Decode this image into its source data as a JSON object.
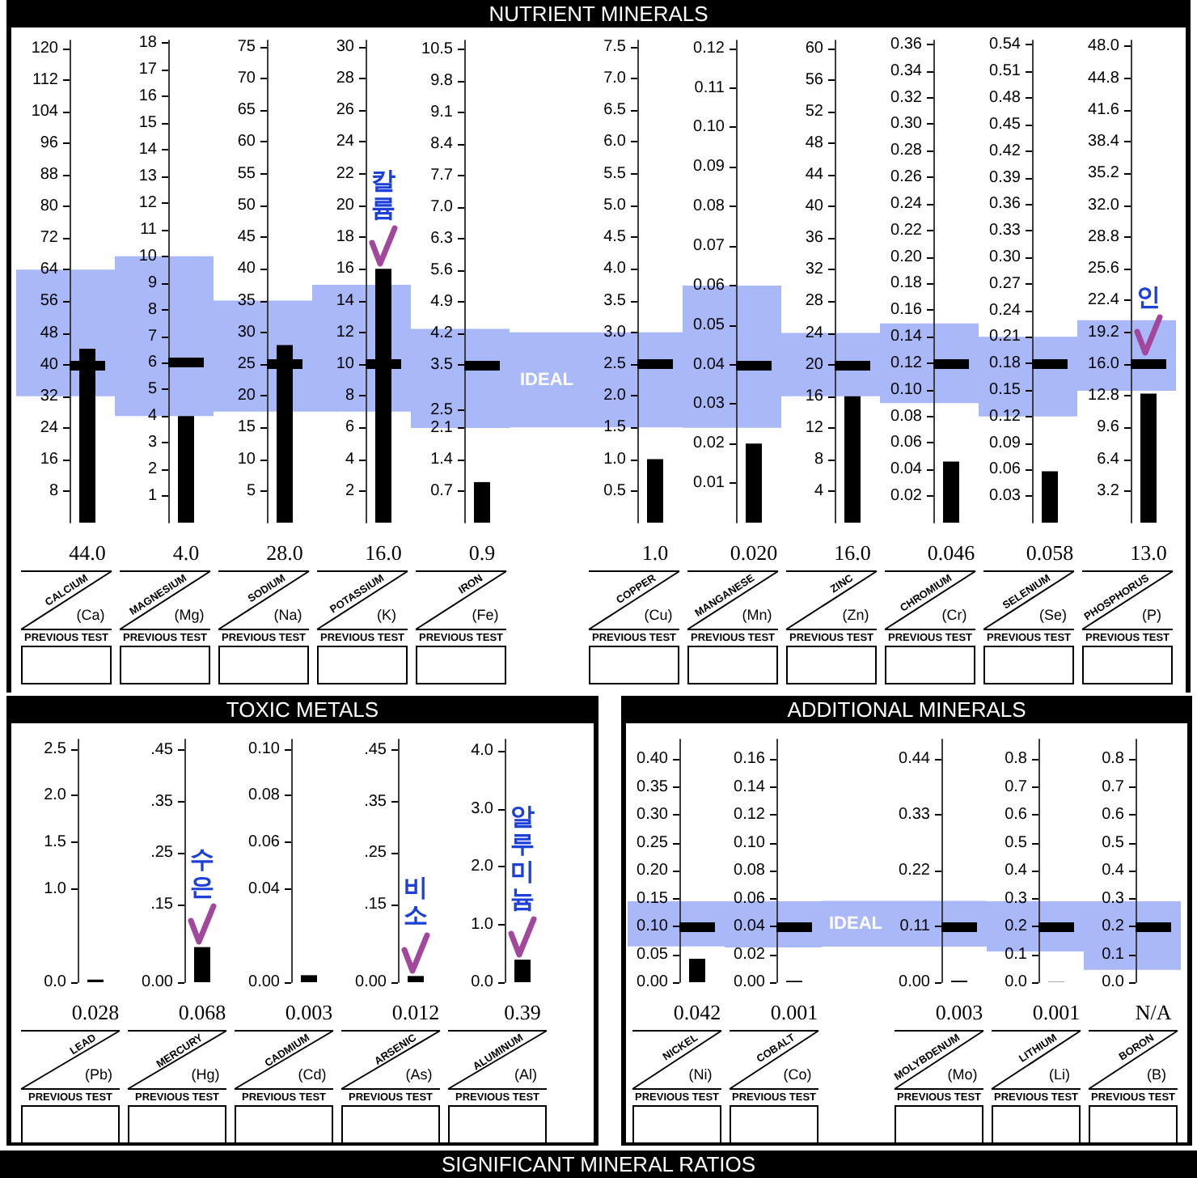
{
  "chart_data": [
    {
      "type": "other",
      "title": "NUTRIENT MINERALS"
    },
    {
      "type": "bar",
      "categories": [
        "CALCIUM"
      ],
      "values": [
        44.0
      ],
      "value_labels": [
        "44.0"
      ],
      "color": "#000000",
      "ylim": [
        0,
        122
      ],
      "yticks": [
        8,
        16,
        24,
        32,
        40,
        48,
        56,
        64,
        72,
        80,
        88,
        96,
        104,
        112,
        120
      ],
      "ref_lines": [
        {
          "axis": "y",
          "value": 40,
          "color": "#000000"
        }
      ],
      "bands": [
        {
          "axis": "y",
          "from": 32,
          "to": 64,
          "color": "#a8b8f8"
        }
      ],
      "annotations": [
        "(Ca)",
        "PREVIOUS TEST"
      ]
    },
    {
      "type": "bar",
      "categories": [
        "MAGNESIUM"
      ],
      "values": [
        4.0
      ],
      "value_labels": [
        "4.0"
      ],
      "color": "#000000",
      "ylim": [
        0,
        18.1
      ],
      "yticks": [
        1,
        2,
        3,
        4,
        5,
        6,
        7,
        8,
        9,
        10,
        11,
        12,
        13,
        14,
        15,
        16,
        17,
        18
      ],
      "ref_lines": [
        {
          "axis": "y",
          "value": 6,
          "color": "#000000"
        }
      ],
      "bands": [
        {
          "axis": "y",
          "from": 4,
          "to": 10,
          "color": "#a8b8f8"
        }
      ],
      "annotations": [
        "(Mg)",
        "PREVIOUS TEST"
      ]
    },
    {
      "type": "bar",
      "categories": [
        "SODIUM"
      ],
      "values": [
        28.0
      ],
      "value_labels": [
        "28.0"
      ],
      "color": "#000000",
      "ylim": [
        0,
        76
      ],
      "yticks": [
        5,
        10,
        15,
        20,
        25,
        30,
        35,
        40,
        45,
        50,
        55,
        60,
        65,
        70,
        75
      ],
      "ref_lines": [
        {
          "axis": "y",
          "value": 25,
          "color": "#000000"
        }
      ],
      "bands": [
        {
          "axis": "y",
          "from": 17.5,
          "to": 35,
          "color": "#a8b8f8"
        }
      ],
      "annotations": [
        "(Na)",
        "PREVIOUS TEST"
      ]
    },
    {
      "type": "bar",
      "categories": [
        "POTASSIUM"
      ],
      "values": [
        16.0
      ],
      "value_labels": [
        "16.0"
      ],
      "color": "#000000",
      "ylim": [
        0,
        30.4
      ],
      "yticks": [
        2,
        4,
        6,
        8,
        10,
        12,
        14,
        16,
        18,
        20,
        22,
        24,
        26,
        28,
        30
      ],
      "ref_lines": [
        {
          "axis": "y",
          "value": 10,
          "color": "#000000"
        }
      ],
      "bands": [
        {
          "axis": "y",
          "from": 7,
          "to": 15,
          "color": "#a8b8f8"
        }
      ],
      "annotations": [
        "(K)",
        "PREVIOUS TEST",
        {
          "text": "칼륨",
          "x": "POTASSIUM",
          "y": 16.0
        }
      ]
    },
    {
      "type": "bar",
      "categories": [
        "IRON"
      ],
      "values": [
        0.9
      ],
      "value_labels": [
        "0.9"
      ],
      "color": "#000000",
      "ylim": [
        0,
        10.7
      ],
      "yticks": [
        0.7,
        1.4,
        2.1,
        2.5,
        3.5,
        4.2,
        4.9,
        5.6,
        6.3,
        {
          "value": 7,
          "label": "7.0"
        },
        7.7,
        8.4,
        9.1,
        9.8,
        10.5
      ],
      "ref_lines": [
        {
          "axis": "y",
          "value": 3.5,
          "color": "#000000"
        }
      ],
      "bands": [
        {
          "axis": "y",
          "from": 2.1,
          "to": 4.3,
          "color": "#a8b8f8"
        }
      ],
      "annotations": [
        "(Fe)",
        "PREVIOUS TEST"
      ]
    },
    {
      "type": "bar",
      "categories": [
        "COPPER"
      ],
      "values": [
        1.0
      ],
      "value_labels": [
        "1.0"
      ],
      "color": "#000000",
      "ylim": [
        0,
        7.6
      ],
      "yticks": [
        0.5,
        {
          "value": 1,
          "label": "1.0"
        },
        1.5,
        {
          "value": 2,
          "label": "2.0"
        },
        2.5,
        {
          "value": 3,
          "label": "3.0"
        },
        3.5,
        {
          "value": 4,
          "label": "4.0"
        },
        4.5,
        {
          "value": 5,
          "label": "5.0"
        },
        5.5,
        {
          "value": 6,
          "label": "6.0"
        },
        6.5,
        {
          "value": 7,
          "label": "7.0"
        },
        7.5
      ],
      "ref_lines": [
        {
          "axis": "y",
          "value": 2.5,
          "color": "#000000"
        }
      ],
      "bands": [
        {
          "axis": "y",
          "from": 1.5,
          "to": 3.0,
          "color": "#a8b8f8",
          "label": "IDEAL"
        }
      ],
      "annotations": [
        "(Cu)",
        "PREVIOUS TEST"
      ]
    },
    {
      "type": "bar",
      "categories": [
        "MANGANESE"
      ],
      "values": [
        0.02
      ],
      "value_labels": [
        "0.020"
      ],
      "color": "#000000",
      "ylim": [
        0,
        0.122
      ],
      "yticks": [
        0.01,
        0.02,
        0.03,
        0.04,
        0.05,
        0.06,
        0.07,
        0.08,
        0.09,
        {
          "value": 0.1,
          "label": "0.10"
        },
        0.11,
        0.12
      ],
      "ref_lines": [
        {
          "axis": "y",
          "value": 0.04,
          "color": "#000000"
        }
      ],
      "bands": [
        {
          "axis": "y",
          "from": 0.024,
          "to": 0.06,
          "color": "#a8b8f8"
        }
      ],
      "annotations": [
        "(Mn)",
        "PREVIOUS TEST"
      ]
    },
    {
      "type": "bar",
      "categories": [
        "ZINC"
      ],
      "values": [
        16.0
      ],
      "value_labels": [
        "16.0"
      ],
      "color": "#000000",
      "ylim": [
        0,
        61
      ],
      "yticks": [
        4,
        8,
        12,
        16,
        20,
        24,
        28,
        32,
        36,
        40,
        44,
        48,
        52,
        56,
        60
      ],
      "ref_lines": [
        {
          "axis": "y",
          "value": 20,
          "color": "#000000"
        }
      ],
      "bands": [
        {
          "axis": "y",
          "from": 16,
          "to": 24,
          "color": "#a8b8f8"
        }
      ],
      "annotations": [
        "(Zn)",
        "PREVIOUS TEST"
      ]
    },
    {
      "type": "bar",
      "categories": [
        "CHROMIUM"
      ],
      "values": [
        0.046
      ],
      "value_labels": [
        "0.046"
      ],
      "color": "#000000",
      "ylim": [
        0,
        0.363
      ],
      "yticks": [
        0.02,
        0.04,
        0.06,
        0.08,
        {
          "value": 0.1,
          "label": "0.10"
        },
        0.12,
        0.14,
        0.16,
        0.18,
        {
          "value": 0.2,
          "label": "0.20"
        },
        0.22,
        0.24,
        0.26,
        0.28,
        {
          "value": 0.3,
          "label": "0.30"
        },
        0.32,
        0.34,
        0.36
      ],
      "ref_lines": [
        {
          "axis": "y",
          "value": 0.12,
          "color": "#000000"
        }
      ],
      "bands": [
        {
          "axis": "y",
          "from": 0.09,
          "to": 0.15,
          "color": "#a8b8f8"
        }
      ],
      "annotations": [
        "(Cr)",
        "PREVIOUS TEST"
      ]
    },
    {
      "type": "bar",
      "categories": [
        "SELENIUM"
      ],
      "values": [
        0.058
      ],
      "value_labels": [
        "0.058"
      ],
      "color": "#000000",
      "ylim": [
        0,
        0.545
      ],
      "yticks": [
        0.03,
        0.06,
        0.09,
        0.12,
        0.15,
        0.18,
        0.21,
        0.24,
        0.27,
        {
          "value": 0.3,
          "label": "0.30"
        },
        0.33,
        0.36,
        0.39,
        0.42,
        0.45,
        0.48,
        0.51,
        0.54
      ],
      "ref_lines": [
        {
          "axis": "y",
          "value": 0.18,
          "color": "#000000"
        }
      ],
      "bands": [
        {
          "axis": "y",
          "from": 0.12,
          "to": 0.21,
          "color": "#a8b8f8"
        }
      ],
      "annotations": [
        "(Se)",
        "PREVIOUS TEST"
      ]
    },
    {
      "type": "bar",
      "categories": [
        "PHOSPHORUS"
      ],
      "values": [
        13.0
      ],
      "value_labels": [
        "13.0"
      ],
      "color": "#000000",
      "ylim": [
        0,
        48.6
      ],
      "yticks": [
        3.2,
        6.4,
        9.6,
        12.8,
        {
          "value": 16,
          "label": "16.0"
        },
        19.2,
        22.4,
        25.6,
        28.8,
        {
          "value": 32,
          "label": "32.0"
        },
        35.2,
        38.4,
        41.6,
        44.8,
        {
          "value": 48,
          "label": "48.0"
        }
      ],
      "ref_lines": [
        {
          "axis": "y",
          "value": 16,
          "color": "#000000"
        }
      ],
      "bands": [
        {
          "axis": "y",
          "from": 13.3,
          "to": 20.4,
          "color": "#a8b8f8"
        }
      ],
      "annotations": [
        "(P)",
        "PREVIOUS TEST",
        {
          "text": "인",
          "x": "PHOSPHORUS",
          "y": 16.0
        }
      ]
    },
    {
      "type": "other",
      "title": "TOXIC METALS"
    },
    {
      "type": "bar",
      "categories": [
        "LEAD"
      ],
      "values": [
        0.028
      ],
      "value_labels": [
        "0.028"
      ],
      "color": "#000000",
      "ylim": [
        0,
        2.6
      ],
      "yticks": [
        {
          "value": 0,
          "label": "0.0"
        },
        {
          "value": 1,
          "label": "1.0"
        },
        1.5,
        {
          "value": 2,
          "label": "2.0"
        },
        2.5
      ],
      "annotations": [
        "(Pb)",
        "PREVIOUS TEST"
      ]
    },
    {
      "type": "bar",
      "categories": [
        "MERCURY"
      ],
      "values": [
        0.068
      ],
      "value_labels": [
        "0.068"
      ],
      "color": "#000000",
      "ylim": [
        0,
        0.47
      ],
      "yticks": [
        {
          "value": 0,
          "label": "0.00"
        },
        {
          "value": 0.15,
          "label": ".15"
        },
        {
          "value": 0.25,
          "label": ".25"
        },
        {
          "value": 0.35,
          "label": ".35"
        },
        {
          "value": 0.45,
          "label": ".45"
        }
      ],
      "annotations": [
        "(Hg)",
        "PREVIOUS TEST",
        {
          "text": "수은",
          "x": "MERCURY",
          "y": 0.068
        }
      ]
    },
    {
      "type": "bar",
      "categories": [
        "CADMIUM"
      ],
      "values": [
        0.003
      ],
      "value_labels": [
        "0.003"
      ],
      "color": "#000000",
      "ylim": [
        0,
        0.104
      ],
      "yticks": [
        {
          "value": 0,
          "label": "0.00"
        },
        0.04,
        0.06,
        0.08,
        {
          "value": 0.1,
          "label": "0.10"
        }
      ],
      "annotations": [
        "(Cd)",
        "PREVIOUS TEST"
      ]
    },
    {
      "type": "bar",
      "categories": [
        "ARSENIC"
      ],
      "values": [
        0.012
      ],
      "value_labels": [
        "0.012"
      ],
      "color": "#000000",
      "ylim": [
        0,
        0.47
      ],
      "yticks": [
        {
          "value": 0,
          "label": "0.00"
        },
        {
          "value": 0.15,
          "label": ".15"
        },
        {
          "value": 0.25,
          "label": ".25"
        },
        {
          "value": 0.35,
          "label": ".35"
        },
        {
          "value": 0.45,
          "label": ".45"
        }
      ],
      "annotations": [
        "(As)",
        "PREVIOUS TEST",
        {
          "text": "비소",
          "x": "ARSENIC",
          "y": 0.012
        }
      ]
    },
    {
      "type": "bar",
      "categories": [
        "ALUMINUM"
      ],
      "values": [
        0.39
      ],
      "value_labels": [
        "0.39"
      ],
      "color": "#000000",
      "ylim": [
        0,
        4.2
      ],
      "yticks": [
        {
          "value": 0,
          "label": "0.0"
        },
        {
          "value": 1,
          "label": "1.0"
        },
        {
          "value": 2,
          "label": "2.0"
        },
        {
          "value": 3,
          "label": "3.0"
        },
        {
          "value": 4,
          "label": "4.0"
        }
      ],
      "annotations": [
        "(Al)",
        "PREVIOUS TEST",
        {
          "text": "알루미늄",
          "x": "ALUMINUM",
          "y": 0.39
        }
      ]
    },
    {
      "type": "other",
      "title": "ADDITIONAL MINERALS"
    },
    {
      "type": "bar",
      "categories": [
        "NICKEL"
      ],
      "values": [
        0.042
      ],
      "value_labels": [
        "0.042"
      ],
      "color": "#000000",
      "ylim": [
        0,
        0.435
      ],
      "yticks": [
        {
          "value": 0,
          "label": "0.00"
        },
        0.05,
        {
          "value": 0.1,
          "label": "0.10"
        },
        0.15,
        {
          "value": 0.2,
          "label": "0.20"
        },
        0.25,
        {
          "value": 0.3,
          "label": "0.30"
        },
        0.35,
        {
          "value": 0.4,
          "label": "0.40"
        }
      ],
      "ref_lines": [
        {
          "axis": "y",
          "value": 0.1,
          "color": "#000000"
        }
      ],
      "bands": [
        {
          "axis": "y",
          "from": 0.064,
          "to": 0.145,
          "color": "#a8b8f8"
        }
      ],
      "annotations": [
        "(Ni)",
        "PREVIOUS TEST"
      ]
    },
    {
      "type": "bar",
      "categories": [
        "COBALT"
      ],
      "values": [
        0.001
      ],
      "value_labels": [
        "0.001"
      ],
      "color": "#000000",
      "ylim": [
        0,
        0.174
      ],
      "yticks": [
        {
          "value": 0,
          "label": "0.00"
        },
        0.02,
        0.04,
        0.06,
        0.08,
        {
          "value": 0.1,
          "label": "0.10"
        },
        0.12,
        0.14,
        0.16
      ],
      "ref_lines": [
        {
          "axis": "y",
          "value": 0.04,
          "color": "#000000"
        }
      ],
      "bands": [
        {
          "axis": "y",
          "from": 0.025,
          "to": 0.058,
          "color": "#a8b8f8"
        }
      ],
      "annotations": [
        "(Co)",
        "PREVIOUS TEST"
      ]
    },
    {
      "type": "bar",
      "categories": [
        "MOLYBDENUM"
      ],
      "values": [
        0.003
      ],
      "value_labels": [
        "0.003"
      ],
      "color": "#000000",
      "ylim": [
        0,
        0.478
      ],
      "yticks": [
        {
          "value": 0,
          "label": "0.00"
        },
        0.11,
        0.22,
        0.33,
        0.44
      ],
      "ref_lines": [
        {
          "axis": "y",
          "value": 0.11,
          "color": "#000000"
        }
      ],
      "bands": [
        {
          "axis": "y",
          "from": 0.07,
          "to": 0.16,
          "color": "#a8b8f8",
          "label": "IDEAL"
        }
      ],
      "annotations": [
        "(Mo)",
        "PREVIOUS TEST"
      ]
    },
    {
      "type": "bar",
      "categories": [
        "LITHIUM"
      ],
      "values": [
        0.001
      ],
      "value_labels": [
        "0.001"
      ],
      "color": "#000000",
      "ylim": [
        0,
        0.87
      ],
      "yticks": [
        {
          "value": 0,
          "label": "0.0"
        },
        0.1,
        0.2,
        0.3,
        0.4,
        0.5,
        0.6,
        0.7,
        0.8
      ],
      "ref_lines": [
        {
          "axis": "y",
          "value": 0.2,
          "color": "#000000"
        }
      ],
      "bands": [
        {
          "axis": "y",
          "from": 0.11,
          "to": 0.29,
          "color": "#a8b8f8"
        }
      ],
      "annotations": [
        "(Li)",
        "PREVIOUS TEST"
      ]
    },
    {
      "type": "bar",
      "categories": [
        "BORON"
      ],
      "values": [
        null
      ],
      "value_labels": [
        "N/A"
      ],
      "color": "#000000",
      "ylim": [
        0,
        0.87
      ],
      "yticks": [
        {
          "value": 0,
          "label": "0.0"
        },
        0.1,
        0.2,
        0.3,
        0.4,
        0.5,
        0.6,
        0.7,
        0.8
      ],
      "ref_lines": [
        {
          "axis": "y",
          "value": 0.2,
          "color": "#000000"
        }
      ],
      "bands": [
        {
          "axis": "y",
          "from": 0.044,
          "to": 0.29,
          "color": "#a8b8f8"
        }
      ],
      "annotations": [
        "(B)",
        "PREVIOUS TEST"
      ]
    },
    {
      "type": "other",
      "title": "SIGNIFICANT MINERAL RATIOS"
    }
  ]
}
